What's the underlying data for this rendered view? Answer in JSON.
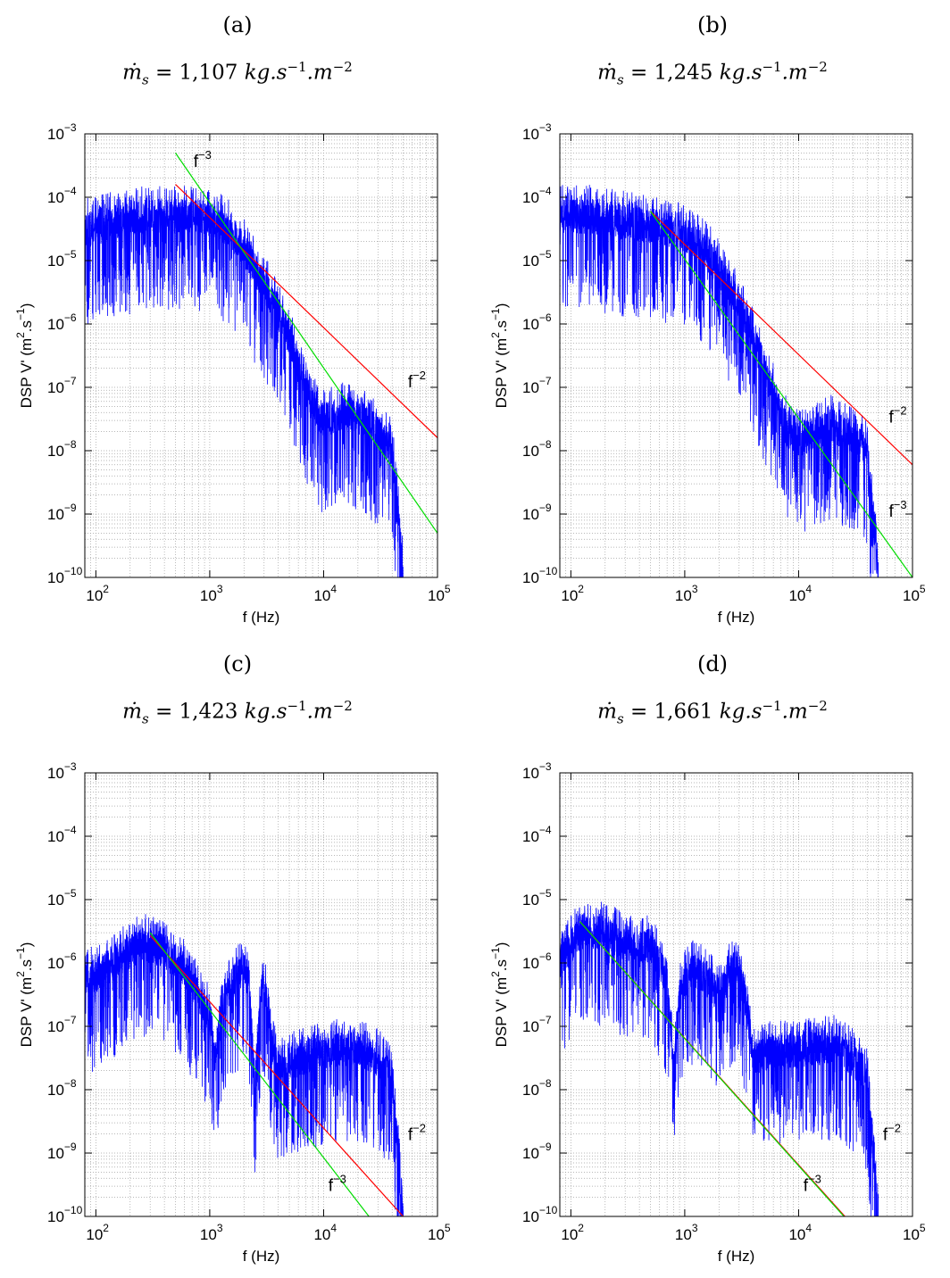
{
  "colors": {
    "spectrum": "#0000ff",
    "fit_f2": "#ff0000",
    "fit_f3": "#00dd00",
    "grid": "#a0a0a0",
    "axis": "#000000"
  },
  "chart_data": [
    {
      "type": "line",
      "panel": "(a)",
      "title": "ṁ",
      "title_sub": "s",
      "title_value": " = 1,107 ",
      "title_units": [
        [
          "kg.s",
          "−1"
        ],
        [
          ".m",
          "−2"
        ]
      ],
      "xlabel": "f (Hz)",
      "ylabel": "DSP V' (m",
      "ylabel_sup1": "2",
      "ylabel_mid": ".s",
      "ylabel_sup2": "−1",
      "ylabel_end": ")",
      "x_scale": "log",
      "y_scale": "log",
      "xlim": [
        80,
        100000
      ],
      "ylim": [
        1e-10,
        0.001
      ],
      "x_ticks": [
        "10",
        "10",
        "10",
        "10"
      ],
      "x_tick_exp": [
        "2",
        "3",
        "4",
        "5"
      ],
      "x_tick_values": [
        100,
        1000,
        10000,
        100000
      ],
      "y_ticks": [
        "10",
        "10",
        "10",
        "10",
        "10",
        "10",
        "10",
        "10"
      ],
      "y_tick_exp": [
        "−10",
        "−9",
        "−8",
        "−7",
        "−6",
        "−5",
        "−4",
        "−3"
      ],
      "y_tick_values": [
        1e-10,
        1e-09,
        1e-08,
        1e-07,
        1e-06,
        1e-05,
        0.0001,
        0.001
      ],
      "grid": true,
      "series": [
        {
          "kind": "spectrum",
          "x": [
            80,
            150,
            300,
            500,
            700,
            1000,
            1500,
            2000,
            3000,
            4000,
            5000,
            6000,
            8000,
            10000,
            15000,
            20000,
            30000,
            40000,
            45000,
            50000
          ],
          "y": [
            3e-05,
            4e-05,
            5e-05,
            5e-05,
            5e-05,
            4.5e-05,
            3e-05,
            1.5e-05,
            4e-06,
            1.5e-06,
            6e-07,
            2e-07,
            5e-08,
            3e-08,
            4e-08,
            3.5e-08,
            2e-08,
            1e-08,
            1e-09,
            1e-10
          ]
        },
        {
          "name": "f",
          "label_exp": "−2",
          "kind": "fit",
          "x": [
            500,
            100000
          ],
          "y": [
            0.00016,
            1.6e-08
          ]
        },
        {
          "name": "f",
          "label_exp": "−3",
          "kind": "fit",
          "x": [
            500,
            100000
          ],
          "y": [
            0.0005,
            5e-10
          ]
        }
      ],
      "annotations": [
        {
          "series": 1,
          "x": 55000,
          "y": 1e-07
        },
        {
          "series": 2,
          "x": 720,
          "y": 0.0003
        }
      ]
    },
    {
      "type": "line",
      "panel": "(b)",
      "title": "ṁ",
      "title_sub": "s",
      "title_value": " = 1,245 ",
      "title_units": [
        [
          "kg.s",
          "−1"
        ],
        [
          ".m",
          "−2"
        ]
      ],
      "xlabel": "f (Hz)",
      "ylabel": "DSP V' (m",
      "ylabel_sup1": "2",
      "ylabel_mid": ".s",
      "ylabel_sup2": "−1",
      "ylabel_end": ")",
      "x_scale": "log",
      "y_scale": "log",
      "xlim": [
        80,
        100000
      ],
      "ylim": [
        1e-10,
        0.001
      ],
      "x_ticks": [
        "10",
        "10",
        "10",
        "10"
      ],
      "x_tick_exp": [
        "2",
        "3",
        "4",
        "5"
      ],
      "x_tick_values": [
        100,
        1000,
        10000,
        100000
      ],
      "y_ticks": [
        "10",
        "10",
        "10",
        "10",
        "10",
        "10",
        "10",
        "10"
      ],
      "y_tick_exp": [
        "−10",
        "−9",
        "−8",
        "−7",
        "−6",
        "−5",
        "−4",
        "−3"
      ],
      "y_tick_values": [
        1e-10,
        1e-09,
        1e-08,
        1e-07,
        1e-06,
        1e-05,
        0.0001,
        0.001
      ],
      "grid": true,
      "series": [
        {
          "kind": "spectrum",
          "x": [
            80,
            150,
            300,
            500,
            800,
            1000,
            1500,
            2000,
            3000,
            4000,
            5000,
            6000,
            8000,
            10000,
            15000,
            20000,
            30000,
            40000,
            45000,
            50000
          ],
          "y": [
            5e-05,
            5e-05,
            4e-05,
            3.5e-05,
            3e-05,
            2.5e-05,
            1.5e-05,
            7e-06,
            2e-06,
            6e-07,
            2e-07,
            8e-08,
            2e-08,
            1.5e-08,
            2e-08,
            2.5e-08,
            1.5e-08,
            1e-08,
            1e-09,
            1e-10
          ]
        },
        {
          "name": "f",
          "label_exp": "−2",
          "kind": "fit",
          "x": [
            500,
            100000
          ],
          "y": [
            6e-05,
            6e-09
          ]
        },
        {
          "name": "f",
          "label_exp": "−3",
          "kind": "fit",
          "x": [
            500,
            100000
          ],
          "y": [
            6e-05,
            1e-10
          ]
        }
      ],
      "annotations": [
        {
          "series": 1,
          "x": 62000,
          "y": 2.8e-08
        },
        {
          "series": 2,
          "x": 62000,
          "y": 9e-10
        }
      ]
    },
    {
      "type": "line",
      "panel": "(c)",
      "title": "ṁ",
      "title_sub": "s",
      "title_value": " = 1,423 ",
      "title_units": [
        [
          "kg.s",
          "−1"
        ],
        [
          ".m",
          "−2"
        ]
      ],
      "xlabel": "f (Hz)",
      "ylabel": "DSP V' (m",
      "ylabel_sup1": "2",
      "ylabel_mid": ".s",
      "ylabel_sup2": "−1",
      "ylabel_end": ")",
      "x_scale": "log",
      "y_scale": "log",
      "xlim": [
        80,
        100000
      ],
      "ylim": [
        1e-10,
        0.001
      ],
      "x_ticks": [
        "10",
        "10",
        "10",
        "10"
      ],
      "x_tick_exp": [
        "2",
        "3",
        "4",
        "5"
      ],
      "x_tick_values": [
        100,
        1000,
        10000,
        100000
      ],
      "y_ticks": [
        "10",
        "10",
        "10",
        "10",
        "10",
        "10",
        "10",
        "10"
      ],
      "y_tick_exp": [
        "−10",
        "−9",
        "−8",
        "−7",
        "−6",
        "−5",
        "−4",
        "−3"
      ],
      "y_tick_values": [
        1e-10,
        1e-09,
        1e-08,
        1e-07,
        1e-06,
        1e-05,
        0.0001,
        0.001
      ],
      "grid": true,
      "series": [
        {
          "kind": "spectrum",
          "x": [
            80,
            150,
            250,
            400,
            600,
            800,
            1000,
            1100,
            1300,
            1600,
            2000,
            2200,
            2500,
            2800,
            3000,
            3500,
            4000,
            6000,
            10000,
            20000,
            30000,
            40000,
            45000,
            50000
          ],
          "y": [
            5e-07,
            1e-06,
            2e-06,
            1.5e-06,
            8e-07,
            3e-07,
            1.5e-07,
            3e-08,
            2e-07,
            5e-07,
            8e-07,
            5e-07,
            1e-08,
            3e-07,
            5e-07,
            5e-08,
            2e-08,
            3e-08,
            4e-08,
            4.5e-08,
            3e-08,
            1.5e-08,
            1e-09,
            1e-10
          ]
        },
        {
          "name": "f",
          "label_exp": "−2",
          "kind": "fit",
          "x": [
            300,
            100000
          ],
          "y": [
            2.7e-06,
            2.5e-11
          ]
        },
        {
          "name": "f",
          "label_exp": "−3",
          "kind": "fit",
          "x": [
            300,
            25000
          ],
          "y": [
            3e-06,
            1e-10
          ]
        }
      ],
      "annotations": [
        {
          "series": 1,
          "x": 55000,
          "y": 1.6e-09
        },
        {
          "series": 2,
          "x": 11000,
          "y": 2.5e-10
        }
      ]
    },
    {
      "type": "line",
      "panel": "(d)",
      "title": "ṁ",
      "title_sub": "s",
      "title_value": " = 1,661 ",
      "title_units": [
        [
          "kg.s",
          "−1"
        ],
        [
          ".m",
          "−2"
        ]
      ],
      "xlabel": "f (Hz)",
      "ylabel": "DSP V' (m",
      "ylabel_sup1": "2",
      "ylabel_mid": ".s",
      "ylabel_sup2": "−1",
      "ylabel_end": ")",
      "x_scale": "log",
      "y_scale": "log",
      "xlim": [
        80,
        100000
      ],
      "ylim": [
        1e-10,
        0.001
      ],
      "x_ticks": [
        "10",
        "10",
        "10",
        "10"
      ],
      "x_tick_exp": [
        "2",
        "3",
        "4",
        "5"
      ],
      "x_tick_values": [
        100,
        1000,
        10000,
        100000
      ],
      "y_ticks": [
        "10",
        "10",
        "10",
        "10",
        "10",
        "10",
        "10",
        "10"
      ],
      "y_tick_exp": [
        "−10",
        "−9",
        "−8",
        "−7",
        "−6",
        "−5",
        "−4",
        "−3"
      ],
      "y_tick_values": [
        1e-10,
        1e-09,
        1e-08,
        1e-07,
        1e-06,
        1e-05,
        0.0001,
        0.001
      ],
      "grid": true,
      "series": [
        {
          "kind": "spectrum",
          "x": [
            80,
            120,
            200,
            300,
            400,
            500,
            700,
            800,
            900,
            1100,
            1500,
            2000,
            2500,
            3000,
            3500,
            4000,
            6000,
            10000,
            20000,
            30000,
            40000,
            45000,
            50000
          ],
          "y": [
            1e-06,
            3e-06,
            3e-06,
            2e-06,
            1.5e-06,
            2e-06,
            5e-07,
            2e-08,
            3e-07,
            8e-07,
            6e-07,
            3e-07,
            7e-07,
            8e-07,
            2e-07,
            3e-08,
            4e-08,
            4e-08,
            5e-08,
            3e-08,
            1.5e-08,
            1e-09,
            1e-10
          ]
        },
        {
          "name": "f",
          "label_exp": "−2",
          "kind": "fit",
          "x": [
            120,
            100000
          ],
          "y": [
            4.5e-06,
            6.5e-12
          ]
        },
        {
          "name": "f",
          "label_exp": "−3",
          "kind": "fit",
          "x": [
            120,
            25000
          ],
          "y": [
            4.5e-06,
            1e-10
          ]
        }
      ],
      "annotations": [
        {
          "series": 1,
          "x": 55000,
          "y": 1.6e-09
        },
        {
          "series": 2,
          "x": 11000,
          "y": 2.5e-10
        }
      ]
    }
  ]
}
